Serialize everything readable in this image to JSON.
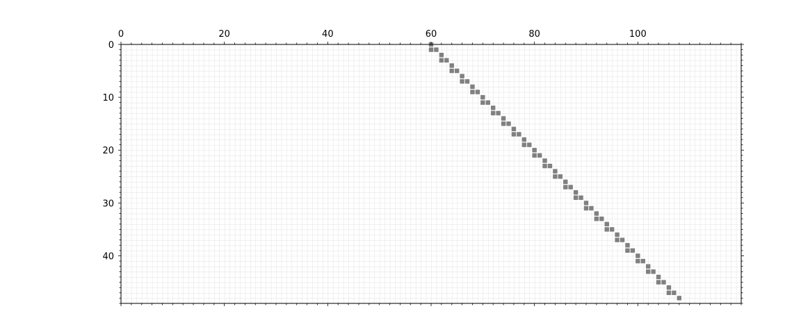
{
  "chart_data": {
    "type": "heatmap",
    "title": "",
    "xlabel": "",
    "ylabel": "",
    "xlim": [
      0,
      120
    ],
    "ylim": [
      49,
      0
    ],
    "x_ticks": [
      0,
      20,
      40,
      60,
      80,
      100
    ],
    "x_tick_labels": [
      "0",
      "20",
      "40",
      "60",
      "80",
      "100"
    ],
    "x_axis_position": "top",
    "y_ticks": [
      0,
      10,
      20,
      30,
      40
    ],
    "y_tick_labels": [
      "0",
      "10",
      "20",
      "30",
      "40"
    ],
    "grid": true,
    "cell_color": "#808080",
    "grid_color": "#e6e6e6",
    "cells": [
      {
        "row": 0,
        "col": 60
      },
      {
        "row": 1,
        "col": 60
      },
      {
        "row": 1,
        "col": 61
      },
      {
        "row": 2,
        "col": 62
      },
      {
        "row": 3,
        "col": 62
      },
      {
        "row": 3,
        "col": 63
      },
      {
        "row": 4,
        "col": 64
      },
      {
        "row": 5,
        "col": 64
      },
      {
        "row": 5,
        "col": 65
      },
      {
        "row": 6,
        "col": 66
      },
      {
        "row": 7,
        "col": 66
      },
      {
        "row": 7,
        "col": 67
      },
      {
        "row": 8,
        "col": 68
      },
      {
        "row": 9,
        "col": 68
      },
      {
        "row": 9,
        "col": 69
      },
      {
        "row": 10,
        "col": 70
      },
      {
        "row": 11,
        "col": 70
      },
      {
        "row": 11,
        "col": 71
      },
      {
        "row": 12,
        "col": 72
      },
      {
        "row": 13,
        "col": 72
      },
      {
        "row": 13,
        "col": 73
      },
      {
        "row": 14,
        "col": 74
      },
      {
        "row": 15,
        "col": 74
      },
      {
        "row": 15,
        "col": 75
      },
      {
        "row": 16,
        "col": 76
      },
      {
        "row": 17,
        "col": 76
      },
      {
        "row": 17,
        "col": 77
      },
      {
        "row": 18,
        "col": 78
      },
      {
        "row": 19,
        "col": 78
      },
      {
        "row": 19,
        "col": 79
      },
      {
        "row": 20,
        "col": 80
      },
      {
        "row": 21,
        "col": 80
      },
      {
        "row": 21,
        "col": 81
      },
      {
        "row": 22,
        "col": 82
      },
      {
        "row": 23,
        "col": 82
      },
      {
        "row": 23,
        "col": 83
      },
      {
        "row": 24,
        "col": 84
      },
      {
        "row": 25,
        "col": 84
      },
      {
        "row": 25,
        "col": 85
      },
      {
        "row": 26,
        "col": 86
      },
      {
        "row": 27,
        "col": 86
      },
      {
        "row": 27,
        "col": 87
      },
      {
        "row": 28,
        "col": 88
      },
      {
        "row": 29,
        "col": 88
      },
      {
        "row": 29,
        "col": 89
      },
      {
        "row": 30,
        "col": 90
      },
      {
        "row": 31,
        "col": 90
      },
      {
        "row": 31,
        "col": 91
      },
      {
        "row": 32,
        "col": 92
      },
      {
        "row": 33,
        "col": 92
      },
      {
        "row": 33,
        "col": 93
      },
      {
        "row": 34,
        "col": 94
      },
      {
        "row": 35,
        "col": 94
      },
      {
        "row": 35,
        "col": 95
      },
      {
        "row": 36,
        "col": 96
      },
      {
        "row": 37,
        "col": 96
      },
      {
        "row": 37,
        "col": 97
      },
      {
        "row": 38,
        "col": 98
      },
      {
        "row": 39,
        "col": 98
      },
      {
        "row": 39,
        "col": 99
      },
      {
        "row": 40,
        "col": 100
      },
      {
        "row": 41,
        "col": 100
      },
      {
        "row": 41,
        "col": 101
      },
      {
        "row": 42,
        "col": 102
      },
      {
        "row": 43,
        "col": 102
      },
      {
        "row": 43,
        "col": 103
      },
      {
        "row": 44,
        "col": 104
      },
      {
        "row": 45,
        "col": 104
      },
      {
        "row": 45,
        "col": 105
      },
      {
        "row": 46,
        "col": 106
      },
      {
        "row": 47,
        "col": 106
      },
      {
        "row": 47,
        "col": 107
      },
      {
        "row": 48,
        "col": 108
      }
    ]
  }
}
